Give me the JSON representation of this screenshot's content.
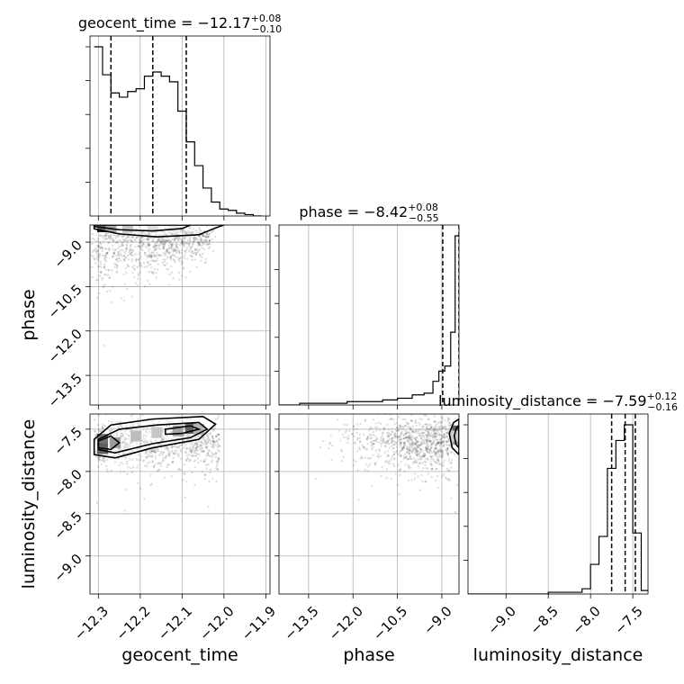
{
  "chart_data": {
    "type": "corner",
    "parameters": [
      "geocent_time",
      "phase",
      "luminosity_distance"
    ],
    "titles": [
      {
        "param": "geocent_time",
        "text": "geocent_time = ",
        "median": "−12.17",
        "plus": "+0.08",
        "minus": "−0.10"
      },
      {
        "param": "phase",
        "text": "phase = ",
        "median": "−8.42",
        "plus": "+0.08",
        "minus": "−0.55"
      },
      {
        "param": "luminosity_distance",
        "text": "luminosity_distance = ",
        "median": "−7.59",
        "plus": "+0.12",
        "minus": "−0.16"
      }
    ],
    "axes": {
      "geocent_time": {
        "range": [
          -12.32,
          -11.89
        ],
        "ticks": [
          -12.3,
          -12.2,
          -12.1,
          -12.0,
          -11.9
        ],
        "tick_labels": [
          "−12.3",
          "−12.2",
          "−12.1",
          "−12.0",
          "−11.9"
        ]
      },
      "phase": {
        "range": [
          -14.5,
          -8.42
        ],
        "ticks": [
          -13.5,
          -12.0,
          -10.5,
          -9.0
        ],
        "tick_labels": [
          "−13.5",
          "−12.0",
          "−10.5",
          "−9.0"
        ]
      },
      "luminosity_distance": {
        "range": [
          -9.45,
          -7.32
        ],
        "ticks": [
          -9.0,
          -8.5,
          -8.0,
          -7.5
        ],
        "tick_labels": [
          "−9.0",
          "−8.5",
          "−8.0",
          "−7.5"
        ]
      }
    },
    "quantiles": {
      "geocent_time": [
        -12.27,
        -12.17,
        -12.09
      ],
      "phase": [
        -8.97,
        -8.42,
        -8.34
      ],
      "luminosity_distance": [
        -7.75,
        -7.59,
        -7.47
      ]
    },
    "histograms": {
      "geocent_time": {
        "edges": [
          -12.31,
          -12.29,
          -12.27,
          -12.25,
          -12.23,
          -12.21,
          -12.19,
          -12.17,
          -12.15,
          -12.13,
          -12.11,
          -12.09,
          -12.07,
          -12.05,
          -12.03,
          -12.01,
          -11.99,
          -11.97,
          -11.95,
          -11.93,
          -11.91
        ],
        "counts": [
          1.21,
          1.01,
          0.88,
          0.85,
          0.89,
          0.91,
          1.0,
          1.03,
          1.0,
          0.96,
          0.75,
          0.53,
          0.36,
          0.2,
          0.1,
          0.05,
          0.04,
          0.02,
          0.01,
          0.0
        ]
      },
      "phase": {
        "edges": [
          -14.5,
          -13.8,
          -13.0,
          -12.2,
          -11.5,
          -11.0,
          -10.5,
          -10.0,
          -9.6,
          -9.3,
          -9.1,
          -8.9,
          -8.7,
          -8.55,
          -8.42
        ],
        "counts": [
          0.0,
          0.01,
          0.01,
          0.02,
          0.02,
          0.03,
          0.04,
          0.06,
          0.07,
          0.14,
          0.2,
          0.23,
          0.43,
          1.0
        ]
      },
      "luminosity_distance": {
        "edges": [
          -9.45,
          -9.0,
          -8.5,
          -8.1,
          -8.0,
          -7.9,
          -7.8,
          -7.7,
          -7.6,
          -7.5,
          -7.4,
          -7.32
        ],
        "counts": [
          0.0,
          0.0,
          0.01,
          0.03,
          0.17,
          0.33,
          0.72,
          0.88,
          0.97,
          0.35,
          0.02
        ]
      }
    },
    "contours": {
      "phase_vs_geocent_time": {
        "x": "geocent_time",
        "y": "phase",
        "levels": [
          [
            [
              -12.31,
              -8.55
            ],
            [
              -12.25,
              -8.72
            ],
            [
              -12.16,
              -8.82
            ],
            [
              -12.06,
              -8.75
            ],
            [
              -12.02,
              -8.52
            ],
            [
              -12.0,
              -8.42
            ],
            [
              -12.31,
              -8.42
            ]
          ],
          [
            [
              -12.31,
              -8.47
            ],
            [
              -12.25,
              -8.58
            ],
            [
              -12.17,
              -8.62
            ],
            [
              -12.1,
              -8.54
            ],
            [
              -12.08,
              -8.42
            ],
            [
              -12.31,
              -8.42
            ]
          ]
        ],
        "density_cells": [
          {
            "x": -12.29,
            "y": -8.48,
            "v": 0.9
          },
          {
            "x": -12.27,
            "y": -8.48,
            "v": 0.55
          },
          {
            "x": -12.23,
            "y": -8.5,
            "v": 0.35
          },
          {
            "x": -12.17,
            "y": -8.5,
            "v": 0.2
          },
          {
            "x": -12.12,
            "y": -8.52,
            "v": 0.12
          }
        ]
      },
      "luminosity_distance_vs_geocent_time": {
        "x": "geocent_time",
        "y": "luminosity_distance",
        "levels": [
          [
            [
              -12.31,
              -7.62
            ],
            [
              -12.27,
              -7.45
            ],
            [
              -12.17,
              -7.38
            ],
            [
              -12.05,
              -7.35
            ],
            [
              -12.02,
              -7.44
            ],
            [
              -12.06,
              -7.62
            ],
            [
              -12.17,
              -7.72
            ],
            [
              -12.26,
              -7.84
            ],
            [
              -12.31,
              -7.8
            ]
          ],
          [
            [
              -12.3,
              -7.62
            ],
            [
              -12.25,
              -7.5
            ],
            [
              -12.16,
              -7.45
            ],
            [
              -12.06,
              -7.42
            ],
            [
              -12.04,
              -7.5
            ],
            [
              -12.08,
              -7.6
            ],
            [
              -12.17,
              -7.67
            ],
            [
              -12.26,
              -7.78
            ],
            [
              -12.3,
              -7.74
            ]
          ],
          [
            [
              -12.3,
              -7.64
            ],
            [
              -12.27,
              -7.58
            ],
            [
              -12.25,
              -7.66
            ],
            [
              -12.27,
              -7.74
            ],
            [
              -12.3,
              -7.72
            ]
          ],
          [
            [
              -12.14,
              -7.5
            ],
            [
              -12.08,
              -7.46
            ],
            [
              -12.06,
              -7.5
            ],
            [
              -12.1,
              -7.55
            ],
            [
              -12.14,
              -7.56
            ]
          ]
        ],
        "density_cells": [
          {
            "x": -12.29,
            "y": -7.62,
            "v": 0.85
          },
          {
            "x": -12.29,
            "y": -7.73,
            "v": 0.95
          },
          {
            "x": -12.26,
            "y": -7.66,
            "v": 0.6
          },
          {
            "x": -12.21,
            "y": -7.58,
            "v": 0.4
          },
          {
            "x": -12.16,
            "y": -7.54,
            "v": 0.35
          },
          {
            "x": -12.11,
            "y": -7.52,
            "v": 0.55
          },
          {
            "x": -12.08,
            "y": -7.49,
            "v": 0.95
          },
          {
            "x": -12.06,
            "y": -7.5,
            "v": 0.45
          }
        ]
      },
      "luminosity_distance_vs_phase": {
        "x": "phase",
        "y": "luminosity_distance",
        "levels": [
          [
            [
              -8.42,
              -7.38
            ],
            [
              -8.6,
              -7.42
            ],
            [
              -8.75,
              -7.55
            ],
            [
              -8.65,
              -7.72
            ],
            [
              -8.42,
              -7.8
            ]
          ],
          [
            [
              -8.42,
              -7.45
            ],
            [
              -8.52,
              -7.5
            ],
            [
              -8.58,
              -7.58
            ],
            [
              -8.52,
              -7.68
            ],
            [
              -8.42,
              -7.72
            ]
          ]
        ],
        "density_cells": [
          {
            "x": -8.47,
            "y": -7.52,
            "v": 0.95
          },
          {
            "x": -8.47,
            "y": -7.62,
            "v": 0.6
          },
          {
            "x": -8.55,
            "y": -7.58,
            "v": 0.3
          }
        ]
      }
    },
    "scatter": {
      "phase_vs_geocent_time": {
        "x": "geocent_time",
        "y": "phase"
      },
      "luminosity_distance_vs_geocent_time": {
        "x": "geocent_time",
        "y": "luminosity_distance"
      },
      "luminosity_distance_vs_phase": {
        "x": "phase",
        "y": "luminosity_distance"
      }
    },
    "grid": true
  }
}
